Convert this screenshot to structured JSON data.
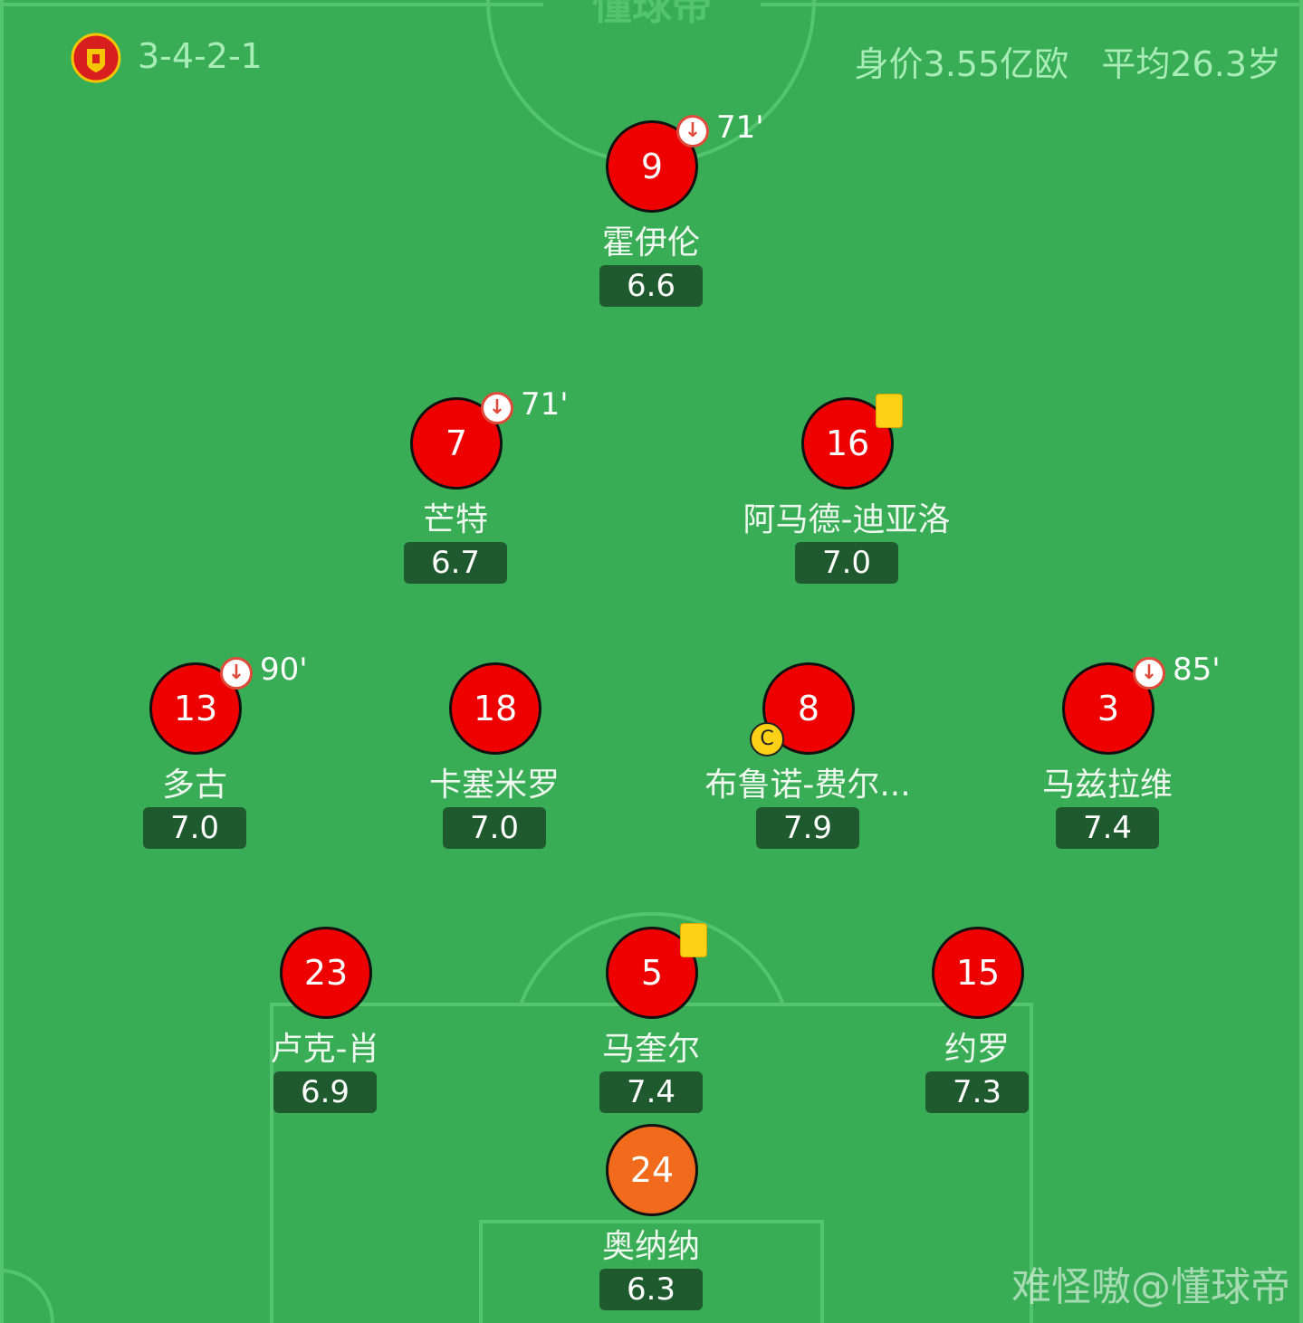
{
  "header": {
    "formation": "3-4-2-1",
    "value_age": "身价3.55亿欧   平均26.3岁",
    "brand": "懂球帝"
  },
  "watermark": "难怪嗷@懂球帝",
  "colors": {
    "pitch": "#38ad55",
    "player": "#ee0000",
    "goalkeeper": "#f26a1b",
    "rating_bg": "#1e5a2e"
  },
  "players": [
    {
      "number": "9",
      "name": "霍伊伦",
      "rating": "6.6",
      "sub_out": "71'"
    },
    {
      "number": "7",
      "name": "芒特",
      "rating": "6.7",
      "sub_out": "71'"
    },
    {
      "number": "16",
      "name": "阿马德-迪亚洛",
      "rating": "7.0",
      "yellow_card": true
    },
    {
      "number": "13",
      "name": "多古",
      "rating": "7.0",
      "sub_out": "90'"
    },
    {
      "number": "18",
      "name": "卡塞米罗",
      "rating": "7.0"
    },
    {
      "number": "8",
      "name": "布鲁诺-费尔...",
      "rating": "7.9",
      "captain": "C"
    },
    {
      "number": "3",
      "name": "马兹拉维",
      "rating": "7.4",
      "sub_out": "85'"
    },
    {
      "number": "23",
      "name": "卢克-肖",
      "rating": "6.9"
    },
    {
      "number": "5",
      "name": "马奎尔",
      "rating": "7.4",
      "yellow_card": true
    },
    {
      "number": "15",
      "name": "约罗",
      "rating": "7.3"
    },
    {
      "number": "24",
      "name": "奥纳纳",
      "rating": "6.3",
      "goalkeeper": true
    }
  ]
}
